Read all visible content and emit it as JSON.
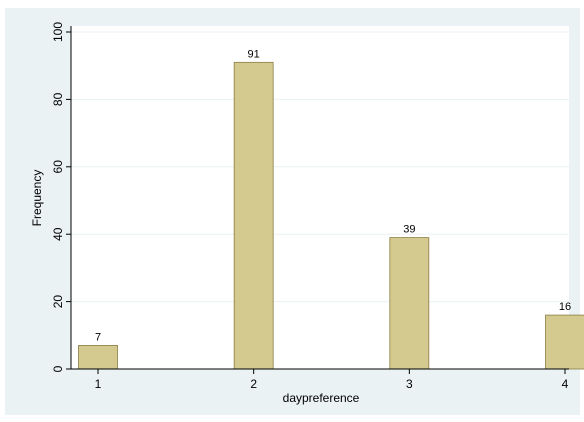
{
  "chart_data": {
    "type": "bar",
    "categories": [
      "1",
      "2",
      "3",
      "4"
    ],
    "values": [
      7,
      91,
      39,
      16
    ],
    "data_labels": [
      "7",
      "91",
      "39",
      "16"
    ],
    "title": "",
    "xlabel": "daypreference",
    "ylabel": "Frequency",
    "xlim": [
      1,
      4
    ],
    "ylim": [
      0,
      100
    ],
    "xticks": [
      "1",
      "2",
      "3",
      "4"
    ],
    "yticks": [
      "0",
      "20",
      "40",
      "60",
      "80",
      "100"
    ],
    "grid": "horizontal",
    "legend": "none",
    "colors": {
      "bar_fill": "#d4c98e",
      "bar_stroke": "#8a7e45",
      "plot_background": "#ffffff",
      "panel_background": "#eaf2f3",
      "gridline": "#eaf2f3"
    }
  }
}
